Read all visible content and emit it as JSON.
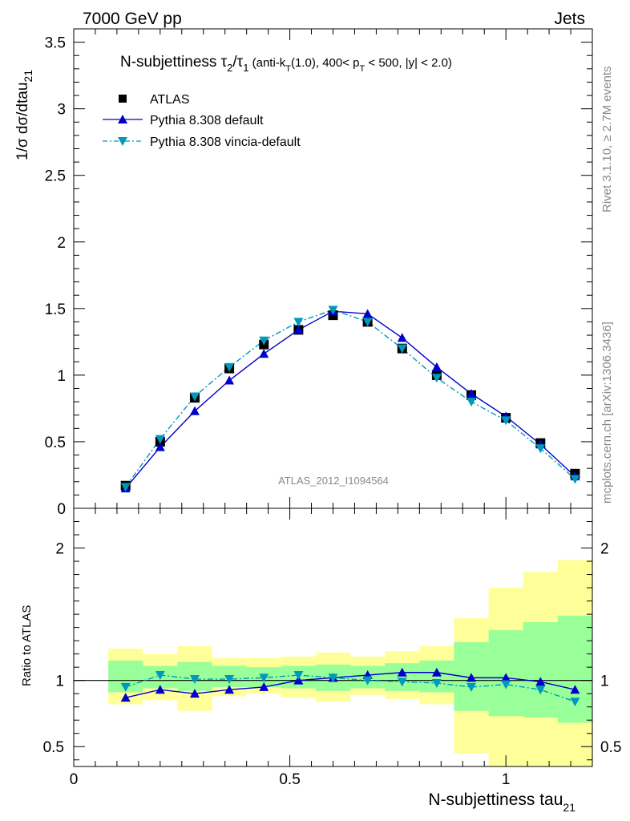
{
  "header": {
    "left": "7000 GeV pp",
    "right": "Jets"
  },
  "side_labels": {
    "rivet": "Rivet 3.1.10, ≥ 2.7M events",
    "mcplots": "mcplots.cern.ch [arXiv:1306.3436]"
  },
  "title": {
    "main": "N-subjettiness τ",
    "sub2": "2",
    "slash": "/τ",
    "sub1": "1",
    "cuts_a": " (anti-k",
    "cuts_T": "T",
    "cuts_b": "(1.0), 400< p",
    "cuts_T2": "T",
    "cuts_c": " < 500, |y| < 2.0)"
  },
  "analysis_label": "ATLAS_2012_I1094564",
  "y_label_top": "1/σ dσ/dtau",
  "y_label_top_sub": "21",
  "y_label_bottom": "Ratio to ATLAS",
  "x_label": "N-subjettiness tau",
  "x_label_sub": "21",
  "legend": [
    {
      "label": "ATLAS",
      "marker": "square",
      "color": "#000000"
    },
    {
      "label": "Pythia 8.308 default",
      "marker": "triangle-up",
      "color": "#0000cc"
    },
    {
      "label": "Pythia 8.308 vincia-default",
      "marker": "triangle-down",
      "color": "#0099bb"
    }
  ],
  "chart_data": [
    {
      "type": "line",
      "panel": "main",
      "xlim": [
        0,
        1.2
      ],
      "ylim": [
        0,
        3.6
      ],
      "x_ticks": [
        "0",
        "0.5",
        "1"
      ],
      "y_ticks": [
        "0",
        "0.5",
        "1",
        "1.5",
        "2",
        "2.5",
        "3",
        "3.5"
      ],
      "x": [
        0.12,
        0.2,
        0.28,
        0.36,
        0.44,
        0.52,
        0.6,
        0.68,
        0.76,
        0.84,
        0.92,
        1.0,
        1.08,
        1.16
      ],
      "series": [
        {
          "name": "ATLAS",
          "values": [
            0.17,
            0.5,
            0.83,
            1.05,
            1.23,
            1.34,
            1.45,
            1.4,
            1.2,
            1.0,
            0.85,
            0.68,
            0.49,
            0.26
          ]
        },
        {
          "name": "Pythia 8.308 default",
          "values": [
            0.15,
            0.46,
            0.73,
            0.96,
            1.16,
            1.34,
            1.48,
            1.46,
            1.28,
            1.06,
            0.86,
            0.69,
            0.48,
            0.24
          ]
        },
        {
          "name": "Pythia 8.308 vincia-default",
          "values": [
            0.16,
            0.52,
            0.84,
            1.06,
            1.26,
            1.4,
            1.49,
            1.4,
            1.2,
            0.98,
            0.8,
            0.66,
            0.45,
            0.22
          ]
        }
      ]
    },
    {
      "type": "line",
      "panel": "ratio",
      "xlim": [
        0,
        1.2
      ],
      "ylim": [
        0.35,
        2.3
      ],
      "x_ticks": [
        "0",
        "0.5",
        "1"
      ],
      "y_ticks": [
        "0.5",
        "1",
        "2"
      ],
      "x": [
        0.12,
        0.2,
        0.28,
        0.36,
        0.44,
        0.52,
        0.6,
        0.68,
        0.76,
        0.84,
        0.92,
        1.0,
        1.08,
        1.16
      ],
      "bins": [
        [
          0.08,
          0.16
        ],
        [
          0.16,
          0.24
        ],
        [
          0.24,
          0.32
        ],
        [
          0.32,
          0.4
        ],
        [
          0.4,
          0.48
        ],
        [
          0.48,
          0.56
        ],
        [
          0.56,
          0.64
        ],
        [
          0.64,
          0.72
        ],
        [
          0.72,
          0.8
        ],
        [
          0.8,
          0.88
        ],
        [
          0.88,
          0.96
        ],
        [
          0.96,
          1.04
        ],
        [
          1.04,
          1.12
        ],
        [
          1.12,
          1.2
        ]
      ],
      "band_outer": [
        [
          0.82,
          1.24
        ],
        [
          0.85,
          1.2
        ],
        [
          0.77,
          1.26
        ],
        [
          0.88,
          1.17
        ],
        [
          0.9,
          1.17
        ],
        [
          0.87,
          1.18
        ],
        [
          0.84,
          1.21
        ],
        [
          0.89,
          1.18
        ],
        [
          0.86,
          1.22
        ],
        [
          0.82,
          1.26
        ],
        [
          0.45,
          1.47
        ],
        [
          0.35,
          1.7
        ],
        [
          0.35,
          1.82
        ],
        [
          0.35,
          1.91
        ]
      ],
      "band_inner": [
        [
          0.91,
          1.15
        ],
        [
          0.94,
          1.11
        ],
        [
          0.92,
          1.14
        ],
        [
          0.95,
          1.11
        ],
        [
          0.95,
          1.1
        ],
        [
          0.94,
          1.11
        ],
        [
          0.92,
          1.12
        ],
        [
          0.94,
          1.11
        ],
        [
          0.92,
          1.13
        ],
        [
          0.91,
          1.15
        ],
        [
          0.77,
          1.29
        ],
        [
          0.73,
          1.38
        ],
        [
          0.72,
          1.44
        ],
        [
          0.68,
          1.49
        ]
      ],
      "series": [
        {
          "name": "Pythia 8.308 default",
          "values": [
            0.87,
            0.93,
            0.9,
            0.93,
            0.95,
            1.0,
            1.02,
            1.04,
            1.06,
            1.06,
            1.02,
            1.02,
            0.99,
            0.93
          ]
        },
        {
          "name": "Pythia 8.308 vincia-default",
          "values": [
            0.95,
            1.04,
            1.01,
            1.01,
            1.02,
            1.04,
            1.02,
            1.0,
            0.99,
            0.98,
            0.95,
            0.97,
            0.93,
            0.84
          ]
        }
      ]
    }
  ],
  "colors": {
    "atlas": "#000000",
    "default": "#0000cc",
    "vincia": "#0099bb",
    "band_outer": "#ffff99",
    "band_inner": "#99ff99",
    "grey_text": "#888888"
  }
}
